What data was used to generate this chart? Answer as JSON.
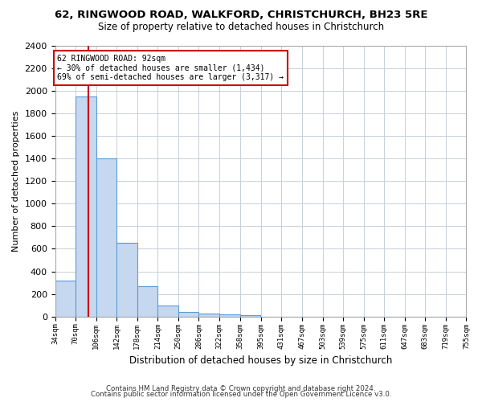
{
  "title": "62, RINGWOOD ROAD, WALKFORD, CHRISTCHURCH, BH23 5RE",
  "subtitle": "Size of property relative to detached houses in Christchurch",
  "xlabel": "Distribution of detached houses by size in Christchurch",
  "ylabel": "Number of detached properties",
  "bar_values": [
    320,
    1950,
    1400,
    650,
    270,
    100,
    40,
    30,
    20,
    15,
    0,
    0,
    0,
    0,
    0,
    0,
    0,
    0,
    0,
    0
  ],
  "bin_edges": [
    34,
    70,
    106,
    142,
    178,
    214,
    250,
    286,
    322,
    358,
    395,
    431,
    467,
    503,
    539,
    575,
    611,
    647,
    683,
    719,
    755
  ],
  "tick_labels": [
    "34sqm",
    "70sqm",
    "106sqm",
    "142sqm",
    "178sqm",
    "214sqm",
    "250sqm",
    "286sqm",
    "322sqm",
    "358sqm",
    "395sqm",
    "431sqm",
    "467sqm",
    "503sqm",
    "539sqm",
    "575sqm",
    "611sqm",
    "647sqm",
    "683sqm",
    "719sqm",
    "755sqm"
  ],
  "bar_color": "#c5d8f0",
  "bar_edge_color": "#5b9bd5",
  "red_line_x": 92,
  "annotation_text": "62 RINGWOOD ROAD: 92sqm\n← 30% of detached houses are smaller (1,434)\n69% of semi-detached houses are larger (3,317) →",
  "annotation_box_color": "#ffffff",
  "annotation_box_edge_color": "#cc0000",
  "red_line_color": "#cc0000",
  "ylim": [
    0,
    2400
  ],
  "yticks": [
    0,
    200,
    400,
    600,
    800,
    1000,
    1200,
    1400,
    1600,
    1800,
    2000,
    2200,
    2400
  ],
  "footer1": "Contains HM Land Registry data © Crown copyright and database right 2024.",
  "footer2": "Contains public sector information licensed under the Open Government Licence v3.0.",
  "background_color": "#ffffff",
  "grid_color": "#c8d0d8"
}
